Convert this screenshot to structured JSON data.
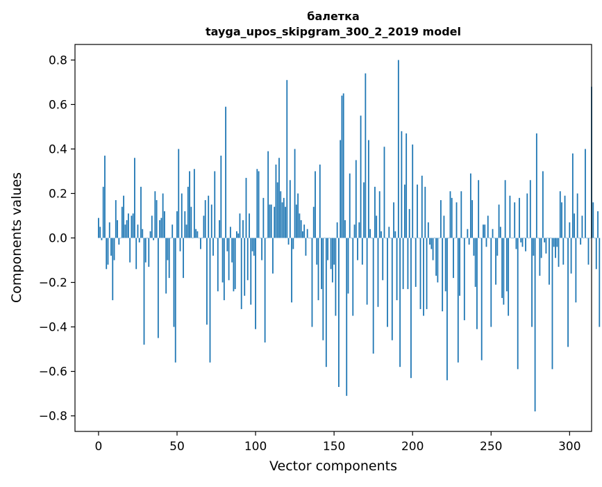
{
  "chart_data": {
    "type": "bar",
    "title": "балетка",
    "subtitle": "tayga_upos_skipgram_300_2_2019 model",
    "xlabel": "Vector components",
    "ylabel": "Components values",
    "xlim": [
      -15,
      314
    ],
    "ylim": [
      -0.87,
      0.87
    ],
    "xticks": [
      0,
      50,
      100,
      150,
      200,
      250,
      300
    ],
    "yticks": [
      -0.8,
      -0.6,
      -0.4,
      -0.2,
      0.0,
      0.2,
      0.4,
      0.6,
      0.8
    ],
    "ytick_labels": [
      "−0.8",
      "−0.6",
      "−0.4",
      "−0.2",
      "0.0",
      "0.2",
      "0.4",
      "0.6",
      "0.8"
    ],
    "grid": false,
    "bar_color": "#1f77b4",
    "values": [
      0.09,
      0.05,
      -0.01,
      0.23,
      0.37,
      -0.14,
      -0.12,
      0.07,
      -0.08,
      -0.28,
      -0.1,
      0.17,
      0.08,
      -0.03,
      0.0,
      0.14,
      0.19,
      0.06,
      0.08,
      0.11,
      -0.11,
      0.1,
      0.11,
      0.36,
      -0.14,
      0.06,
      -0.02,
      0.23,
      0.04,
      -0.48,
      -0.11,
      0.0,
      -0.13,
      0.03,
      0.1,
      -0.01,
      0.21,
      0.17,
      -0.45,
      0.08,
      0.09,
      0.2,
      0.12,
      -0.25,
      -0.1,
      -0.18,
      0.0,
      0.06,
      -0.4,
      -0.56,
      0.12,
      0.4,
      -0.06,
      0.2,
      -0.18,
      0.12,
      0.06,
      0.23,
      0.3,
      0.14,
      0.0,
      0.31,
      0.04,
      0.03,
      0.0,
      -0.05,
      0.0,
      0.1,
      0.17,
      -0.39,
      0.19,
      -0.56,
      0.15,
      -0.08,
      0.3,
      0.0,
      -0.24,
      0.08,
      0.37,
      -0.2,
      -0.28,
      0.59,
      -0.06,
      -0.19,
      0.05,
      -0.11,
      -0.24,
      -0.23,
      0.03,
      0.02,
      0.11,
      -0.32,
      0.08,
      -0.26,
      0.27,
      -0.19,
      0.11,
      -0.3,
      -0.06,
      -0.08,
      -0.41,
      0.31,
      0.3,
      0.0,
      -0.1,
      0.18,
      -0.47,
      0.0,
      0.39,
      0.15,
      0.15,
      -0.16,
      0.14,
      0.33,
      0.25,
      0.36,
      0.21,
      0.16,
      0.18,
      0.14,
      0.71,
      -0.03,
      0.26,
      -0.29,
      -0.05,
      0.4,
      0.15,
      0.2,
      0.11,
      0.08,
      0.03,
      0.06,
      -0.08,
      0.04,
      0.0,
      0.0,
      -0.4,
      0.14,
      0.3,
      -0.12,
      -0.28,
      0.33,
      -0.23,
      -0.46,
      0.0,
      -0.58,
      -0.1,
      0.0,
      -0.14,
      -0.2,
      -0.12,
      -0.35,
      0.07,
      -0.67,
      0.44,
      0.64,
      0.65,
      0.08,
      -0.71,
      -0.25,
      0.29,
      0.0,
      -0.35,
      0.06,
      0.35,
      -0.1,
      0.07,
      0.55,
      -0.12,
      0.25,
      0.74,
      -0.3,
      0.44,
      0.04,
      0.0,
      -0.52,
      0.23,
      0.1,
      -0.31,
      0.21,
      0.03,
      -0.19,
      0.41,
      0.0,
      -0.4,
      0.05,
      0.0,
      -0.46,
      0.16,
      0.03,
      -0.28,
      0.8,
      -0.58,
      0.48,
      -0.23,
      0.24,
      0.47,
      -0.23,
      0.13,
      -0.63,
      0.42,
      0.0,
      -0.22,
      0.24,
      0.0,
      -0.32,
      0.28,
      -0.35,
      0.23,
      -0.32,
      0.07,
      -0.03,
      -0.05,
      -0.1,
      0.0,
      -0.17,
      -0.2,
      0.0,
      0.17,
      -0.33,
      0.1,
      -0.24,
      -0.64,
      0.0,
      0.21,
      0.18,
      -0.18,
      0.0,
      0.16,
      -0.56,
      -0.26,
      0.21,
      0.0,
      -0.37,
      0.0,
      0.04,
      -0.03,
      0.29,
      0.17,
      -0.08,
      -0.22,
      -0.41,
      0.26,
      0.0,
      -0.55,
      0.06,
      0.06,
      -0.04,
      0.1,
      0.0,
      -0.4,
      0.04,
      0.0,
      -0.21,
      -0.08,
      0.15,
      0.05,
      -0.27,
      -0.3,
      0.26,
      -0.24,
      -0.35,
      0.19,
      0.0,
      0.0,
      0.16,
      -0.05,
      -0.59,
      0.18,
      -0.02,
      -0.04,
      0.0,
      -0.06,
      0.2,
      0.0,
      0.26,
      -0.4,
      -0.08,
      -0.78,
      0.47,
      0.0,
      -0.17,
      -0.09,
      0.3,
      -0.02,
      -0.07,
      0.0,
      -0.21,
      0.0,
      -0.59,
      -0.04,
      -0.09,
      -0.04,
      -0.13,
      0.21,
      0.16,
      -0.12,
      0.19,
      0.0,
      -0.49,
      0.07,
      -0.16,
      0.38,
      0.11,
      -0.29,
      0.2,
      0.0,
      -0.03,
      0.1,
      0.0,
      0.4,
      0.0,
      -0.12,
      0.0,
      0.68,
      0.16,
      0.0,
      -0.14,
      0.12,
      -0.4
    ]
  }
}
